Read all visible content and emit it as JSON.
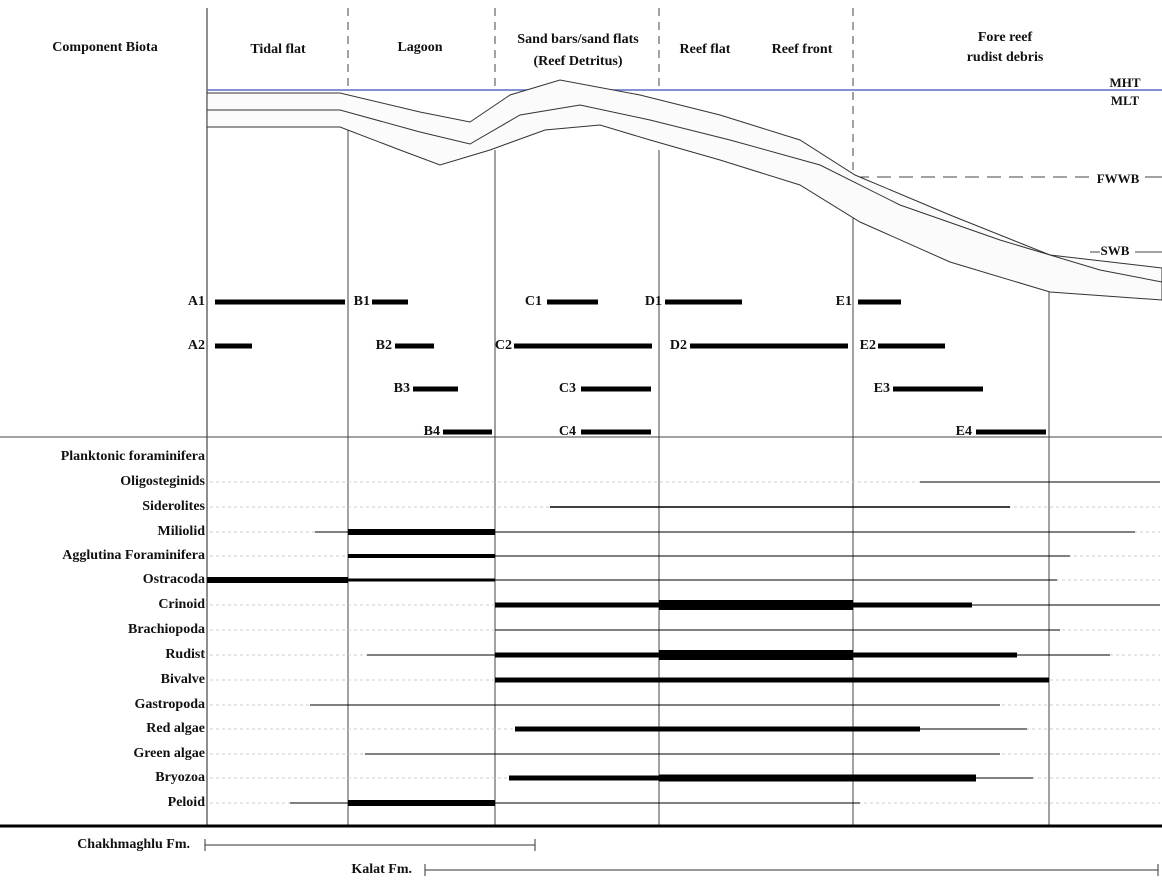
{
  "header": {
    "biota": "Component Biota",
    "zones": [
      [
        "Tidal flat"
      ],
      [
        "Lagoon"
      ],
      [
        "Sand bars/sand flats",
        "(Reef Detritus)"
      ],
      [
        "Reef flat"
      ],
      [
        "Reef front"
      ],
      [
        "Fore reef",
        "rudist debris"
      ]
    ]
  },
  "levels": [
    "MHT",
    "MLT",
    "FWWB",
    "SWB"
  ],
  "microfacies": [
    "A1",
    "A2",
    "B1",
    "B2",
    "B3",
    "B4",
    "C1",
    "C2",
    "C3",
    "C4",
    "D1",
    "D2",
    "E1",
    "E2",
    "E3",
    "E4"
  ],
  "biota": [
    "Planktonic foraminifera",
    "Oligosteginids",
    "Siderolites",
    "Miliolid",
    "Agglutina Foraminifera",
    "Ostracoda",
    "Crinoid",
    "Brachiopoda",
    "Rudist",
    "Bivalve",
    "Gastropoda",
    "Red algae",
    "Green algae",
    "Bryozoa",
    "Peloid"
  ],
  "formations": [
    "Chakhmaghlu Fm.",
    "Kalat Fm."
  ]
}
